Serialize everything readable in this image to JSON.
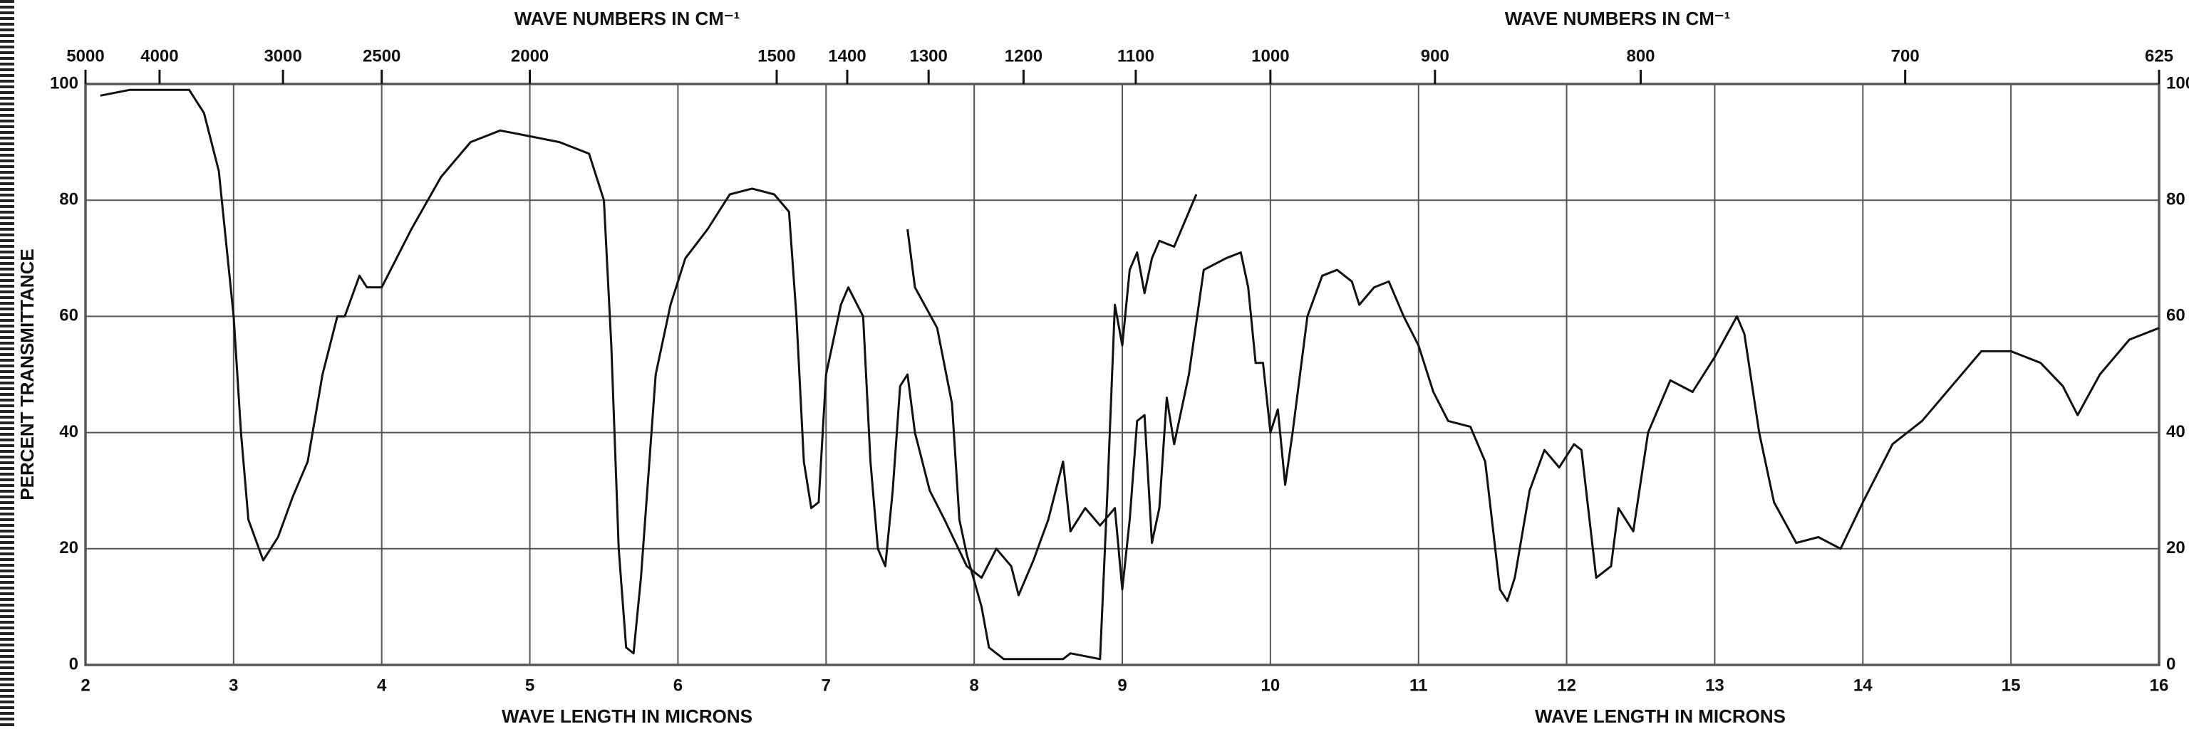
{
  "chart_data": {
    "type": "line",
    "xlabel_top": "WAVE NUMBERS IN CM⁻¹",
    "xlabel_top_2": "WAVE NUMBERS IN CM⁻¹",
    "xlabel": "WAVE LENGTH IN MICRONS",
    "xlabel_2": "WAVE LENGTH IN MICRONS",
    "ylabel": "PERCENT TRANSMITTANCE",
    "xlim": [
      2,
      16
    ],
    "xticks": [
      2,
      3,
      4,
      5,
      6,
      7,
      8,
      9,
      10,
      11,
      12,
      13,
      14,
      15,
      16
    ],
    "x2lim": [
      5000,
      625
    ],
    "x2ticks": [
      5000,
      4000,
      3000,
      2500,
      2000,
      1500,
      1400,
      1300,
      1200,
      1100,
      1000,
      900,
      800,
      700,
      625
    ],
    "ylim": [
      0,
      100
    ],
    "yticks": [
      0,
      20,
      40,
      60,
      80,
      100
    ],
    "grid": true,
    "series": [
      {
        "color": "#111111",
        "x": [
          2.1,
          2.3,
          2.7,
          2.8,
          2.9,
          3.0,
          3.05,
          3.1,
          3.2,
          3.3,
          3.4,
          3.5,
          3.6,
          3.7,
          3.75,
          3.85,
          3.9,
          4.0,
          4.2,
          4.4,
          4.6,
          4.8,
          5.0,
          5.2,
          5.4,
          5.5,
          5.55,
          5.6,
          5.65,
          5.7,
          5.75,
          5.85,
          5.95,
          6.05,
          6.2,
          6.35,
          6.5,
          6.65,
          6.75,
          6.8,
          6.85,
          6.9,
          6.95,
          7.0,
          7.1,
          7.15,
          7.25,
          7.3,
          7.35,
          7.4,
          7.45,
          7.5,
          7.55,
          7.6,
          7.7,
          7.8,
          7.95,
          8.05,
          8.15,
          8.25,
          8.3,
          8.4,
          8.5,
          8.6,
          8.65,
          8.75,
          8.85,
          8.95,
          9.0,
          9.05,
          9.1,
          9.15,
          9.2,
          9.25,
          9.3,
          9.35,
          9.45,
          9.55,
          9.7,
          9.8,
          9.85,
          9.9,
          9.95,
          10.0,
          10.05,
          10.1,
          10.15,
          10.25,
          10.35,
          10.45,
          10.55,
          10.6,
          10.7,
          10.8,
          10.9,
          11.0,
          11.1,
          11.2,
          11.35,
          11.45,
          11.55,
          11.6,
          11.65,
          11.75,
          11.85,
          11.95,
          12.05,
          12.1,
          12.2,
          12.3,
          12.35,
          12.45,
          12.55,
          12.7,
          12.85,
          13.0,
          13.15,
          13.2,
          13.3,
          13.4,
          13.55,
          13.7,
          13.85,
          14.0,
          14.2,
          14.4,
          14.6,
          14.8,
          15.0,
          15.2,
          15.35,
          15.45,
          15.6,
          15.8,
          16.0
        ],
        "values": [
          98,
          99,
          99,
          95,
          85,
          60,
          40,
          25,
          18,
          22,
          29,
          35,
          50,
          60,
          60,
          67,
          65,
          65,
          75,
          84,
          90,
          92,
          91,
          90,
          88,
          80,
          55,
          20,
          3,
          2,
          15,
          50,
          62,
          70,
          75,
          81,
          82,
          81,
          78,
          60,
          35,
          27,
          28,
          50,
          62,
          65,
          60,
          35,
          20,
          17,
          30,
          48,
          50,
          40,
          30,
          25,
          17,
          15,
          20,
          17,
          12,
          18,
          25,
          35,
          23,
          27,
          24,
          27,
          13,
          25,
          42,
          43,
          21,
          27,
          46,
          38,
          50,
          68,
          70,
          71,
          65,
          52,
          52,
          40,
          44,
          31,
          40,
          60,
          67,
          68,
          66,
          62,
          65,
          66,
          60,
          55,
          47,
          42,
          41,
          35,
          13,
          11,
          15,
          30,
          37,
          34,
          38,
          37,
          15,
          17,
          27,
          23,
          40,
          49,
          47,
          53,
          60,
          57,
          40,
          28,
          21,
          22,
          20,
          28,
          38,
          42,
          48,
          54,
          54,
          52,
          48,
          43,
          50,
          56,
          58
        ]
      },
      {
        "color": "#111111",
        "x": [
          7.55,
          7.6,
          7.75,
          7.85,
          7.9,
          7.95,
          8.05,
          8.1,
          8.2,
          8.4,
          8.6,
          8.65,
          8.85,
          8.9,
          8.95,
          9.0,
          9.05,
          9.1,
          9.15,
          9.2,
          9.25,
          9.35,
          9.45,
          9.5
        ],
        "values": [
          75,
          65,
          58,
          45,
          25,
          19,
          10,
          3,
          1,
          1,
          1,
          2,
          1,
          30,
          62,
          55,
          68,
          71,
          64,
          70,
          73,
          72,
          78,
          81
        ]
      }
    ]
  }
}
